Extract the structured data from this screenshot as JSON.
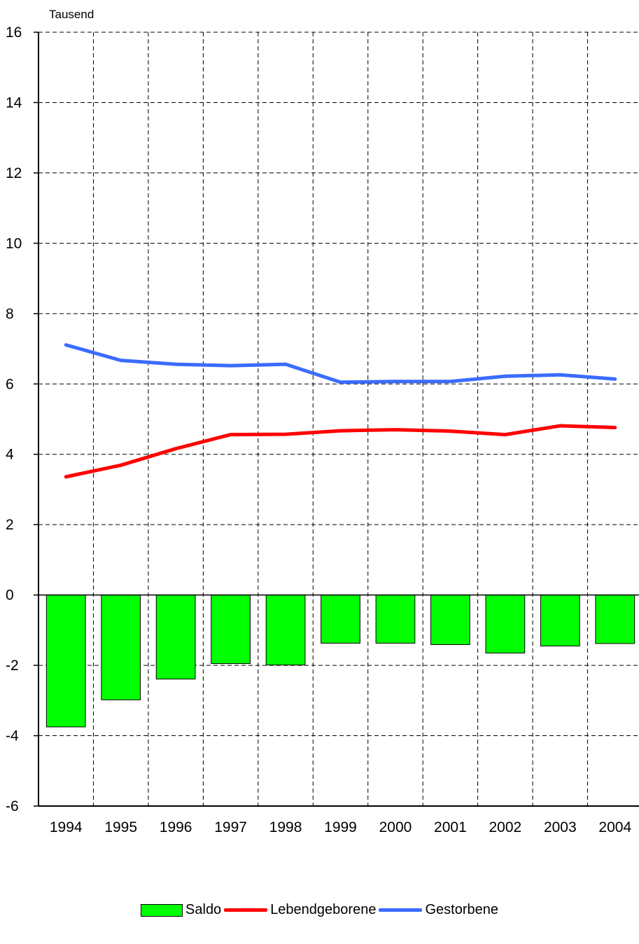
{
  "chart_data": {
    "type": "bar+line",
    "unit_label": "Tausend",
    "categories": [
      "1994",
      "1995",
      "1996",
      "1997",
      "1998",
      "1999",
      "2000",
      "2001",
      "2002",
      "2003",
      "2004"
    ],
    "ylim": [
      -6,
      16
    ],
    "yticks": [
      "-6",
      "-4",
      "-2",
      "0",
      "2",
      "4",
      "6",
      "8",
      "10",
      "12",
      "14",
      "16"
    ],
    "grid": true,
    "legend_position": "bottom",
    "series": [
      {
        "name": "Saldo",
        "type": "bar",
        "color": "#00ff00",
        "values": [
          -3.75,
          -2.98,
          -2.39,
          -1.95,
          -1.99,
          -1.37,
          -1.37,
          -1.41,
          -1.65,
          -1.45,
          -1.38
        ]
      },
      {
        "name": "Lebendgeborene",
        "type": "line",
        "color": "#ff0000",
        "values": [
          3.36,
          3.69,
          4.16,
          4.56,
          4.57,
          4.67,
          4.7,
          4.66,
          4.56,
          4.81,
          4.76
        ]
      },
      {
        "name": "Gestorbene",
        "type": "line",
        "color": "#3a6cff",
        "values": [
          7.11,
          6.67,
          6.56,
          6.52,
          6.56,
          6.05,
          6.07,
          6.07,
          6.22,
          6.26,
          6.14
        ]
      }
    ]
  }
}
